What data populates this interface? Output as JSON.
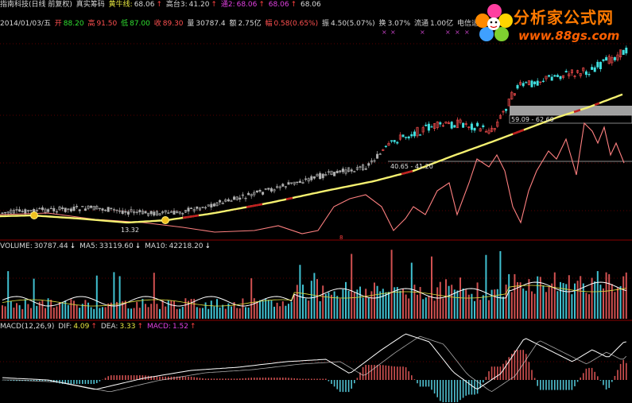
{
  "header": {
    "line1": {
      "title": "指南科技(日线 前复权)",
      "indicator": "真实筹码",
      "yellow_label": "黄牛线:",
      "yellow_value": "68.06",
      "pink_label": "高台3:",
      "pink_value": "41.20",
      "extra1_label": "通2:",
      "extra1_value": "68.06",
      "extra2_value": "68.06",
      "extra3_value": "68.06"
    },
    "line2": {
      "date": "2014/01/03/五",
      "open_label": "开",
      "open": "88.20",
      "high_label": "高",
      "high": "91.50",
      "low_label": "低",
      "low": "87.00",
      "close_label": "收",
      "close": "89.30",
      "vol_label": "量",
      "vol": "30787.4",
      "amount_label": "额",
      "amount": "2.75亿",
      "change_label": "幅",
      "change": "0.58(0.65%)",
      "amp_label": "振",
      "amp": "4.50(5.07%)",
      "turnover_label": "换",
      "turnover": "3.07%",
      "float_label": "流通",
      "float": "1.00亿",
      "sector": "电信运营"
    }
  },
  "volume_header": {
    "volume_label": "VOLUME:",
    "volume": "30787.44",
    "ma5_label": "MA5:",
    "ma5": "33119.60",
    "ma10_label": "MA10:",
    "ma10": "42218.20"
  },
  "macd_header": {
    "name": "MACD(12,26,9)",
    "dif_label": "DIF:",
    "dif": "4.09",
    "dea_label": "DEA:",
    "dea": "3.33",
    "macd_label": "MACD:",
    "macd": "1.52"
  },
  "annotations": {
    "low_price": "13.32",
    "band_upper": "59.09 - 62.69",
    "band_lower": "40.65 - 41.20",
    "marker": "8"
  },
  "logo": {
    "title": "分析家公式网",
    "url": "www.88gs.com"
  },
  "colors": {
    "background": "#000000",
    "up": "#ff4040",
    "down": "#00e0e0",
    "yellow_line": "#f0f060",
    "pink_line": "#ff8080",
    "divider": "#8a0000"
  }
}
